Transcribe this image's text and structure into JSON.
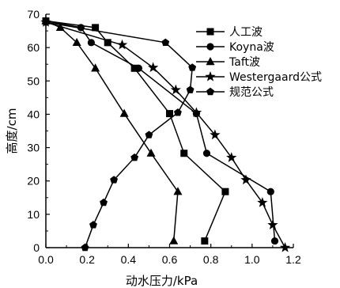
{
  "chart_data": {
    "type": "line",
    "xlabel": "动水压力/kPa",
    "ylabel": "高度/cm",
    "xlim": [
      0,
      1.2
    ],
    "ylim": [
      0,
      70
    ],
    "x_ticks": [
      "0.0",
      "0.2",
      "0.4",
      "0.6",
      "0.8",
      "1.0",
      "1.2"
    ],
    "y_ticks": [
      "0",
      "10",
      "20",
      "30",
      "40",
      "50",
      "60",
      "70"
    ],
    "grid": false,
    "legend_position": "top-right",
    "series": [
      {
        "name": "人工波",
        "marker": "square",
        "points": [
          [
            0.77,
            2
          ],
          [
            0.87,
            16.8
          ],
          [
            0.67,
            28.3
          ],
          [
            0.6,
            40.2
          ],
          [
            0.43,
            53.8
          ],
          [
            0.3,
            61.5
          ],
          [
            0.24,
            66
          ],
          [
            0,
            68
          ]
        ]
      },
      {
        "name": "Koyna波",
        "marker": "circle",
        "points": [
          [
            1.11,
            2
          ],
          [
            1.09,
            16.8
          ],
          [
            0.78,
            28.3
          ],
          [
            0.73,
            40.2
          ],
          [
            0.45,
            53.8
          ],
          [
            0.22,
            61.5
          ],
          [
            0.17,
            66
          ],
          [
            0,
            68
          ]
        ]
      },
      {
        "name": "Taft波",
        "marker": "triangle",
        "points": [
          [
            0.62,
            2
          ],
          [
            0.64,
            16.8
          ],
          [
            0.51,
            28.3
          ],
          [
            0.38,
            40.2
          ],
          [
            0.24,
            53.8
          ],
          [
            0.15,
            61.5
          ],
          [
            0.07,
            66
          ],
          [
            0,
            68
          ]
        ]
      },
      {
        "name": "Westergaard公式",
        "marker": "star",
        "points": [
          [
            1.16,
            0
          ],
          [
            1.1,
            6.8
          ],
          [
            1.05,
            13.5
          ],
          [
            0.97,
            20.3
          ],
          [
            0.9,
            27
          ],
          [
            0.82,
            33.8
          ],
          [
            0.73,
            40.5
          ],
          [
            0.63,
            47.3
          ],
          [
            0.52,
            54
          ],
          [
            0.37,
            60.8
          ],
          [
            0,
            67.6
          ]
        ]
      },
      {
        "name": "规范公式",
        "marker": "pentagon",
        "points": [
          [
            0.19,
            0
          ],
          [
            0.23,
            6.8
          ],
          [
            0.28,
            13.5
          ],
          [
            0.33,
            20.3
          ],
          [
            0.43,
            27
          ],
          [
            0.5,
            33.8
          ],
          [
            0.64,
            40.5
          ],
          [
            0.7,
            47.3
          ],
          [
            0.71,
            54
          ],
          [
            0.58,
            61.5
          ],
          [
            0,
            67.6
          ]
        ]
      }
    ]
  }
}
